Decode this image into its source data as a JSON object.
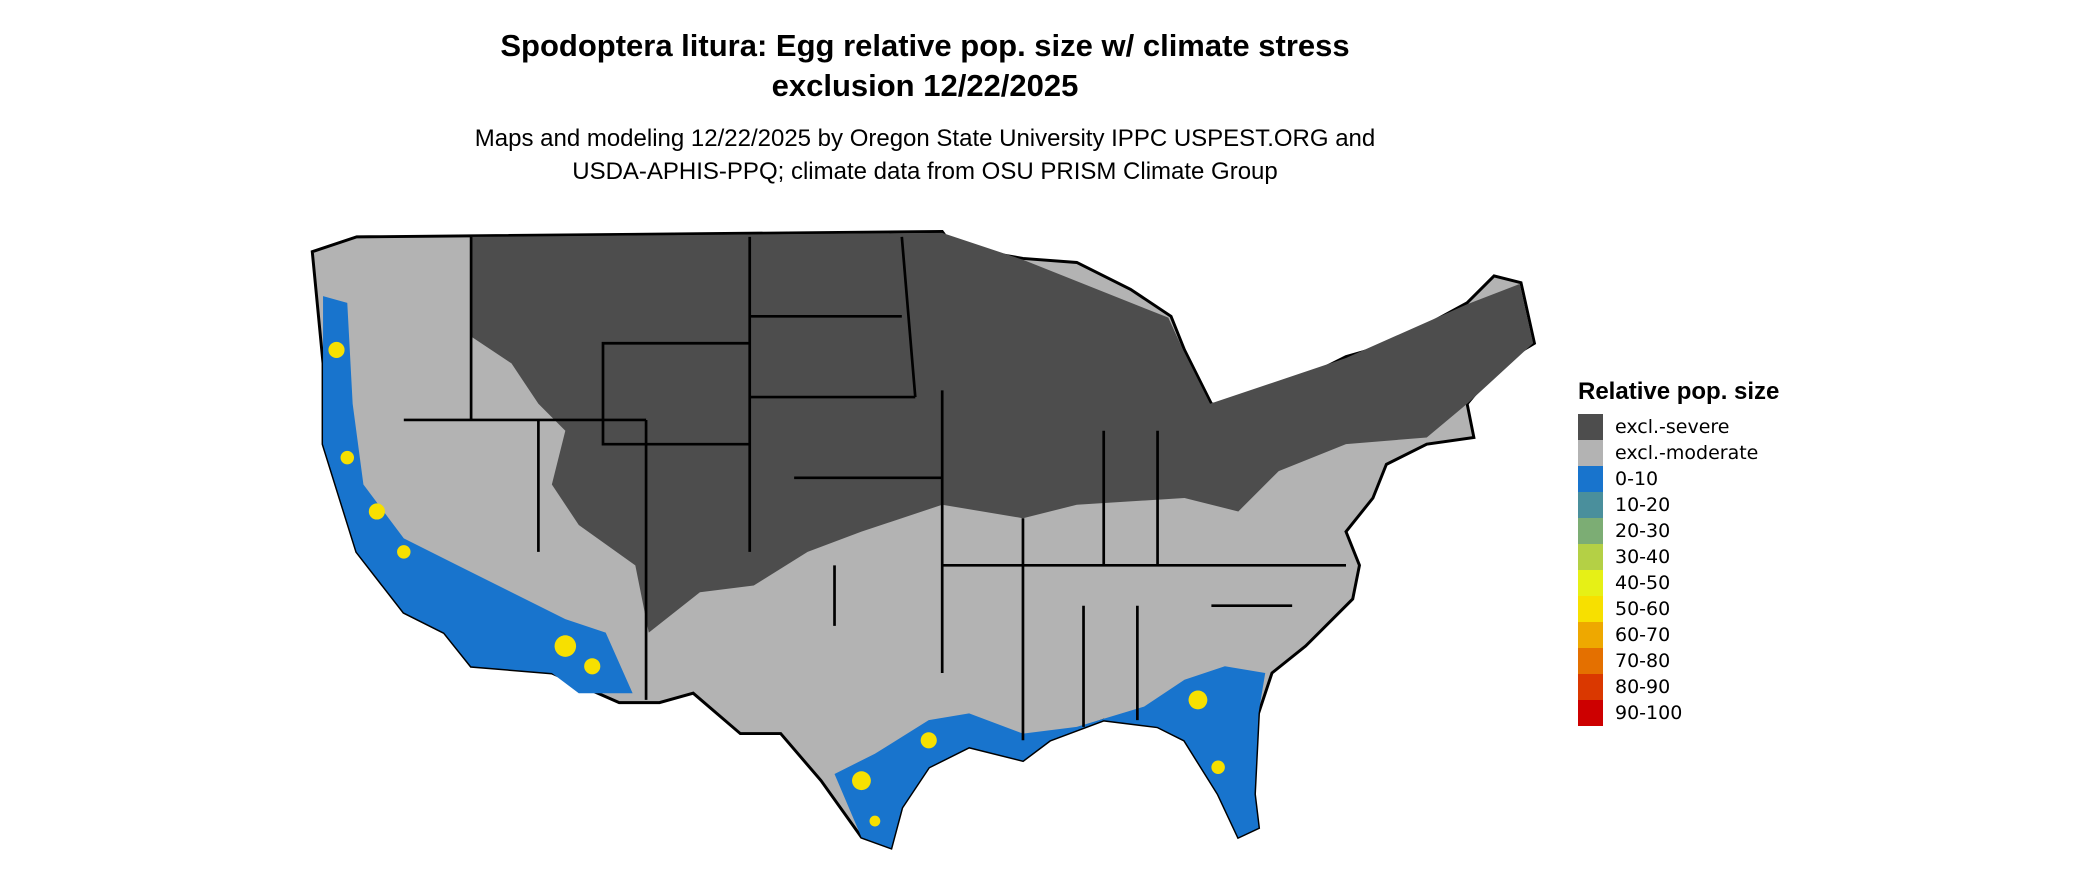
{
  "title_line1": "Spodoptera litura: Egg relative pop. size w/ climate stress",
  "title_line2": "exclusion 12/22/2025",
  "subtitle_line1": "Maps and modeling 12/22/2025 by Oregon State University IPPC USPEST.ORG and",
  "subtitle_line2": "USDA-APHIS-PPQ; climate data from OSU PRISM Climate Group",
  "legend": {
    "title": "Relative pop. size",
    "items": [
      {
        "label": "excl.-severe",
        "color": "#4d4d4d"
      },
      {
        "label": "excl.-moderate",
        "color": "#b3b3b3"
      },
      {
        "label": "0-10",
        "color": "#1874cd"
      },
      {
        "label": "10-20",
        "color": "#4a8f9c"
      },
      {
        "label": "20-30",
        "color": "#7cad74"
      },
      {
        "label": "30-40",
        "color": "#b4d045"
      },
      {
        "label": "40-50",
        "color": "#e6f016"
      },
      {
        "label": "50-60",
        "color": "#f7e000"
      },
      {
        "label": "60-70",
        "color": "#eea800"
      },
      {
        "label": "70-80",
        "color": "#e47000"
      },
      {
        "label": "80-90",
        "color": "#da3800"
      },
      {
        "label": "90-100",
        "color": "#cd0000"
      }
    ]
  }
}
